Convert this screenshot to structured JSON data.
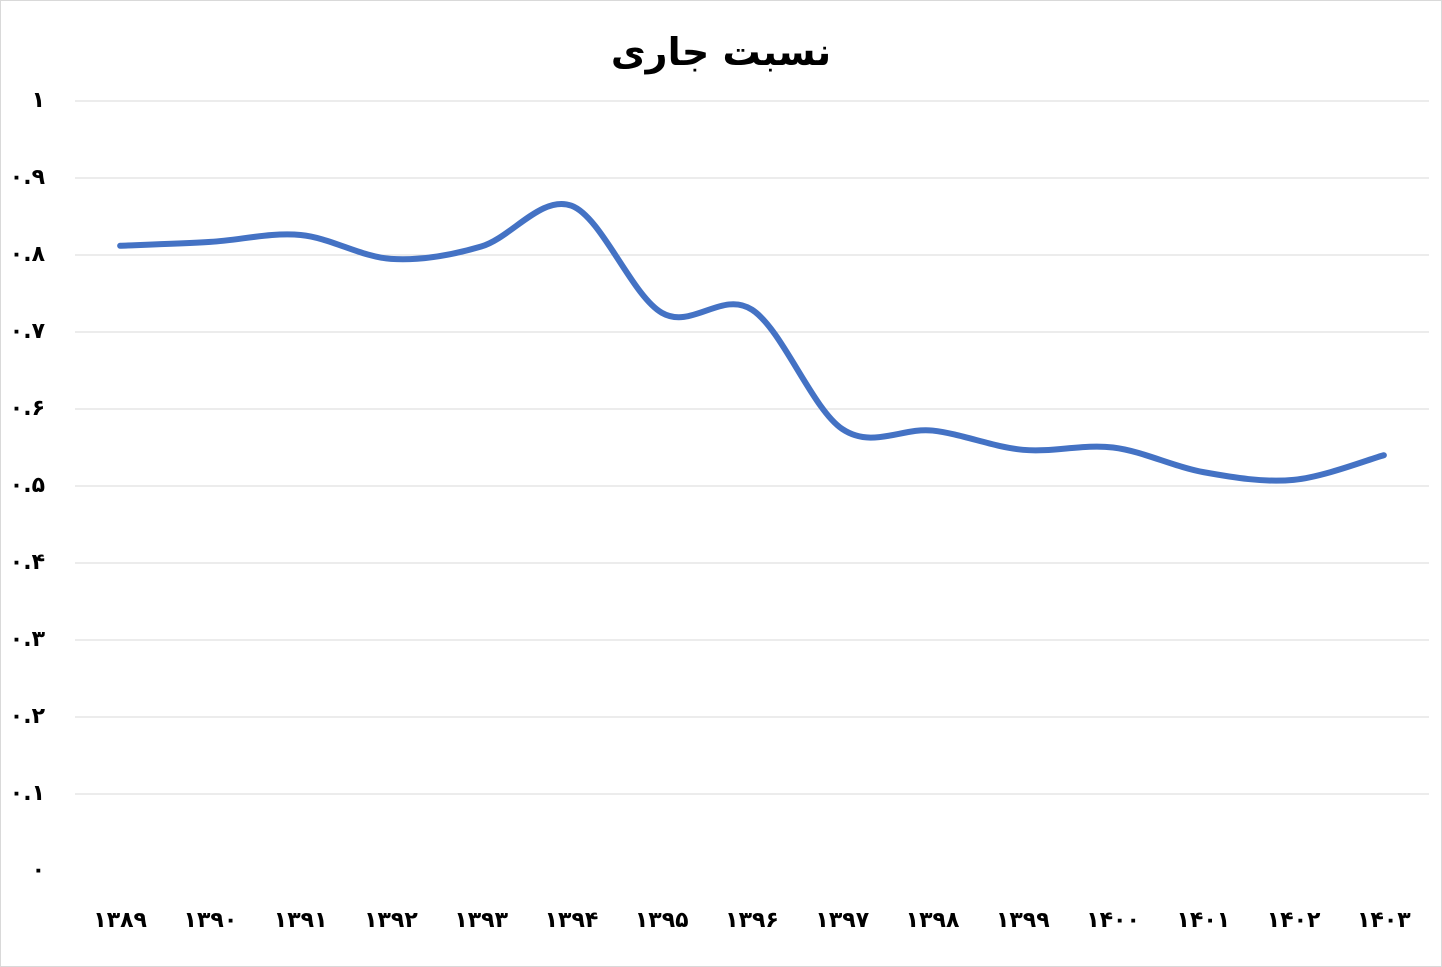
{
  "chart_data": {
    "type": "line",
    "title": "نسبت جاری",
    "xlabel": "",
    "ylabel": "",
    "categories": [
      "۱۳۸۹",
      "۱۳۹۰",
      "۱۳۹۱",
      "۱۳۹۲",
      "۱۳۹۳",
      "۱۳۹۴",
      "۱۳۹۵",
      "۱۳۹۶",
      "۱۳۹۷",
      "۱۳۹۸",
      "۱۳۹۹",
      "۱۴۰۰",
      "۱۴۰۱",
      "۱۴۰۲",
      "۱۴۰۳"
    ],
    "series": [
      {
        "values": [
          0.812,
          0.817,
          0.826,
          0.795,
          0.811,
          0.864,
          0.725,
          0.729,
          0.574,
          0.572,
          0.547,
          0.55,
          0.518,
          0.508,
          0.54
        ],
        "color": "#4472C4"
      }
    ],
    "ylim": [
      0,
      1
    ],
    "yticks": [
      0,
      0.1,
      0.2,
      0.3,
      0.4,
      0.5,
      0.6,
      0.7,
      0.8,
      0.9,
      1
    ],
    "ytick_labels": [
      "۰",
      "۰.۱",
      "۰.۲",
      "۰.۳",
      "۰.۴",
      "۰.۵",
      "۰.۶",
      "۰.۷",
      "۰.۸",
      "۰.۹",
      "۱"
    ],
    "grid": true,
    "legend": "none",
    "smooth": true
  }
}
